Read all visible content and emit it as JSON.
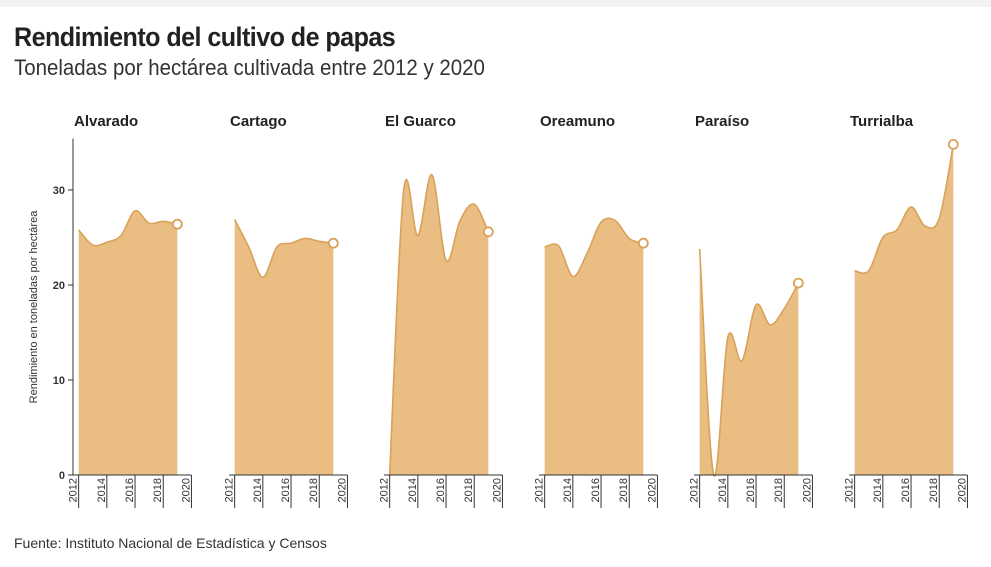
{
  "title": "Rendimiento del cultivo de papas",
  "subtitle": "Toneladas por hectárea cultivada entre 2012 y 2020",
  "source": "Fuente: Instituto Nacional de Estadística y Censos",
  "colors": {
    "area": "#EABD83",
    "line": "#D9A259",
    "axis": "#333333"
  },
  "chart_data": {
    "type": "area",
    "ylabel": "Rendimiento en toneladas por hectárea",
    "ylim": [
      0,
      35
    ],
    "yticks": [
      0,
      10,
      20,
      30
    ],
    "x": [
      2012,
      2013,
      2014,
      2015,
      2016,
      2017,
      2018,
      2019
    ],
    "xlim": [
      2011.6,
      2020
    ],
    "xticks": [
      2012,
      2014,
      2016,
      2018,
      2020
    ],
    "last_point_marker": true,
    "panels": [
      {
        "name": "Alvarado",
        "values": [
          25.8,
          24.2,
          24.5,
          25.2,
          27.8,
          26.5,
          26.7,
          26.4
        ]
      },
      {
        "name": "Cartago",
        "values": [
          26.9,
          24.0,
          20.8,
          24.0,
          24.4,
          24.9,
          24.6,
          24.4
        ]
      },
      {
        "name": "El Guarco",
        "values": [
          0,
          30.0,
          25.2,
          31.6,
          22.6,
          26.8,
          28.5,
          25.6
        ]
      },
      {
        "name": "Oreamuno",
        "values": [
          24.0,
          24.1,
          20.9,
          23.3,
          26.6,
          26.8,
          24.9,
          24.4
        ]
      },
      {
        "name": "Paraíso",
        "values": [
          23.8,
          0,
          14.5,
          12.0,
          17.9,
          15.8,
          17.5,
          20.2
        ]
      },
      {
        "name": "Turrialba",
        "values": [
          21.5,
          21.5,
          25.0,
          25.8,
          28.2,
          26.2,
          27.0,
          34.8
        ]
      }
    ]
  }
}
